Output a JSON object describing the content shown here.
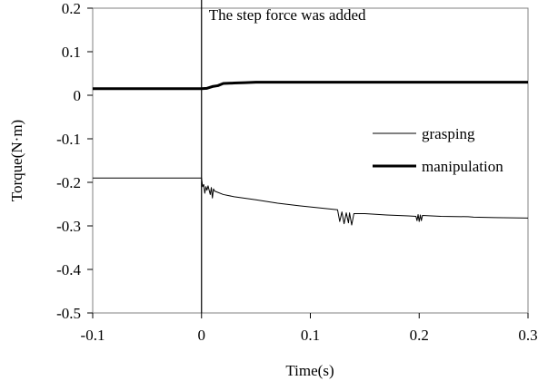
{
  "chart_data": {
    "type": "line",
    "title": "",
    "xlabel": "Time(s)",
    "ylabel": "Torque(N·m)",
    "xlim": [
      -0.1,
      0.3
    ],
    "ylim": [
      -0.5,
      0.2
    ],
    "x_ticks": [
      -0.1,
      0,
      0.1,
      0.2,
      0.3
    ],
    "x_tick_labels": [
      "-0.1",
      "0",
      "0.1",
      "0.2",
      "0.3"
    ],
    "y_ticks": [
      0.2,
      0.1,
      0,
      -0.1,
      -0.2,
      -0.3,
      -0.4,
      -0.5
    ],
    "y_tick_labels": [
      "0.2",
      "0.1",
      "0",
      "-0.1",
      "-0.2",
      "-0.3",
      "-0.4",
      "-0.5"
    ],
    "grid": false,
    "legend_position": "right",
    "annotation": {
      "text": "The step force was added",
      "x": 0
    },
    "series": [
      {
        "name": "grasping",
        "style": "thin",
        "color": "#000000",
        "points": [
          [
            -0.1,
            -0.19
          ],
          [
            0,
            -0.19
          ],
          [
            0.001,
            -0.21
          ],
          [
            0.002,
            -0.205
          ],
          [
            0.003,
            -0.225
          ],
          [
            0.004,
            -0.21
          ],
          [
            0.005,
            -0.218
          ],
          [
            0.006,
            -0.208
          ],
          [
            0.008,
            -0.228
          ],
          [
            0.009,
            -0.212
          ],
          [
            0.01,
            -0.236
          ],
          [
            0.011,
            -0.215
          ],
          [
            0.012,
            -0.22
          ],
          [
            0.02,
            -0.228
          ],
          [
            0.03,
            -0.233
          ],
          [
            0.05,
            -0.24
          ],
          [
            0.07,
            -0.248
          ],
          [
            0.09,
            -0.254
          ],
          [
            0.11,
            -0.259
          ],
          [
            0.125,
            -0.263
          ],
          [
            0.127,
            -0.29
          ],
          [
            0.129,
            -0.268
          ],
          [
            0.131,
            -0.295
          ],
          [
            0.133,
            -0.27
          ],
          [
            0.135,
            -0.293
          ],
          [
            0.136,
            -0.27
          ],
          [
            0.138,
            -0.298
          ],
          [
            0.14,
            -0.272
          ],
          [
            0.15,
            -0.272
          ],
          [
            0.17,
            -0.275
          ],
          [
            0.19,
            -0.277
          ],
          [
            0.197,
            -0.278
          ],
          [
            0.198,
            -0.288
          ],
          [
            0.199,
            -0.274
          ],
          [
            0.2,
            -0.29
          ],
          [
            0.201,
            -0.275
          ],
          [
            0.202,
            -0.288
          ],
          [
            0.203,
            -0.276
          ],
          [
            0.22,
            -0.278
          ],
          [
            0.245,
            -0.279
          ],
          [
            0.25,
            -0.28
          ],
          [
            0.27,
            -0.281
          ],
          [
            0.3,
            -0.282
          ]
        ]
      },
      {
        "name": "manipulation",
        "style": "thick",
        "color": "#000000",
        "points": [
          [
            -0.1,
            0.015
          ],
          [
            0,
            0.015
          ],
          [
            0.005,
            0.016
          ],
          [
            0.01,
            0.02
          ],
          [
            0.015,
            0.022
          ],
          [
            0.02,
            0.027
          ],
          [
            0.03,
            0.028
          ],
          [
            0.04,
            0.029
          ],
          [
            0.05,
            0.03
          ],
          [
            0.1,
            0.03
          ],
          [
            0.2,
            0.03
          ],
          [
            0.3,
            0.03
          ]
        ]
      }
    ]
  }
}
